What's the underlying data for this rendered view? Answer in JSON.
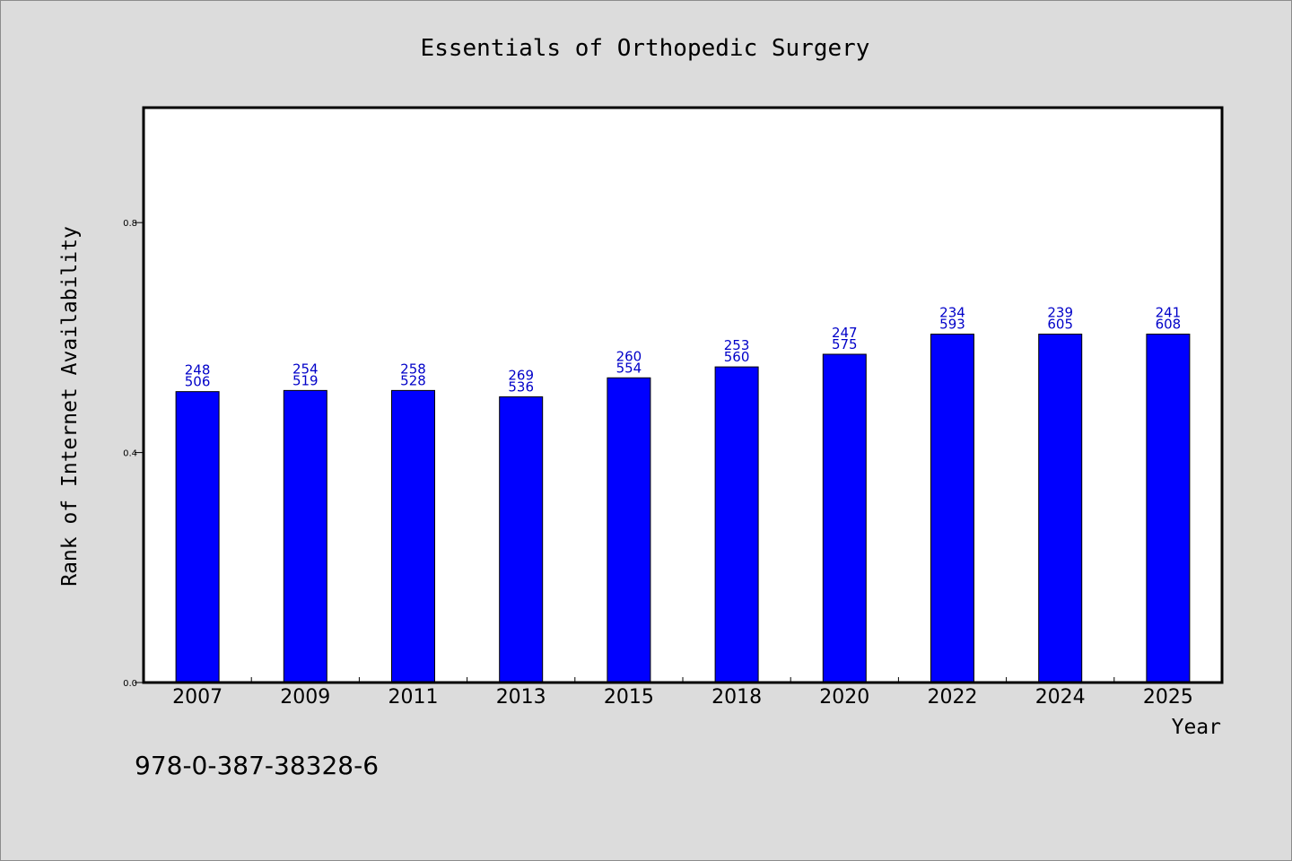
{
  "chart_data": {
    "type": "bar",
    "title": "Essentials of Orthopedic Surgery",
    "xlabel": "Year",
    "ylabel": "Rank of Internet Availability",
    "categories": [
      "2007",
      "2009",
      "2011",
      "2013",
      "2015",
      "2018",
      "2020",
      "2022",
      "2024",
      "2025"
    ],
    "values": [
      0.506,
      0.508,
      0.508,
      0.497,
      0.53,
      0.549,
      0.571,
      0.606,
      0.606,
      0.606
    ],
    "label_top": [
      "248",
      "254",
      "258",
      "269",
      "260",
      "253",
      "247",
      "234",
      "239",
      "241"
    ],
    "label_bottom": [
      "506",
      "519",
      "528",
      "536",
      "554",
      "560",
      "575",
      "593",
      "605",
      "608"
    ],
    "ylim": [
      0,
      1.0
    ],
    "yticks": [
      0.0,
      0.4,
      0.8
    ],
    "ytick_labels": [
      "0.0",
      "0.4",
      "0.8"
    ],
    "grid": false,
    "legend": "none",
    "bar_color": "#0000ff",
    "label_color": "#0000c8",
    "plot_background": "#ffffff",
    "figure_background": "#dcdcdc"
  },
  "footer": {
    "isbn": "978-0-387-38328-6"
  }
}
